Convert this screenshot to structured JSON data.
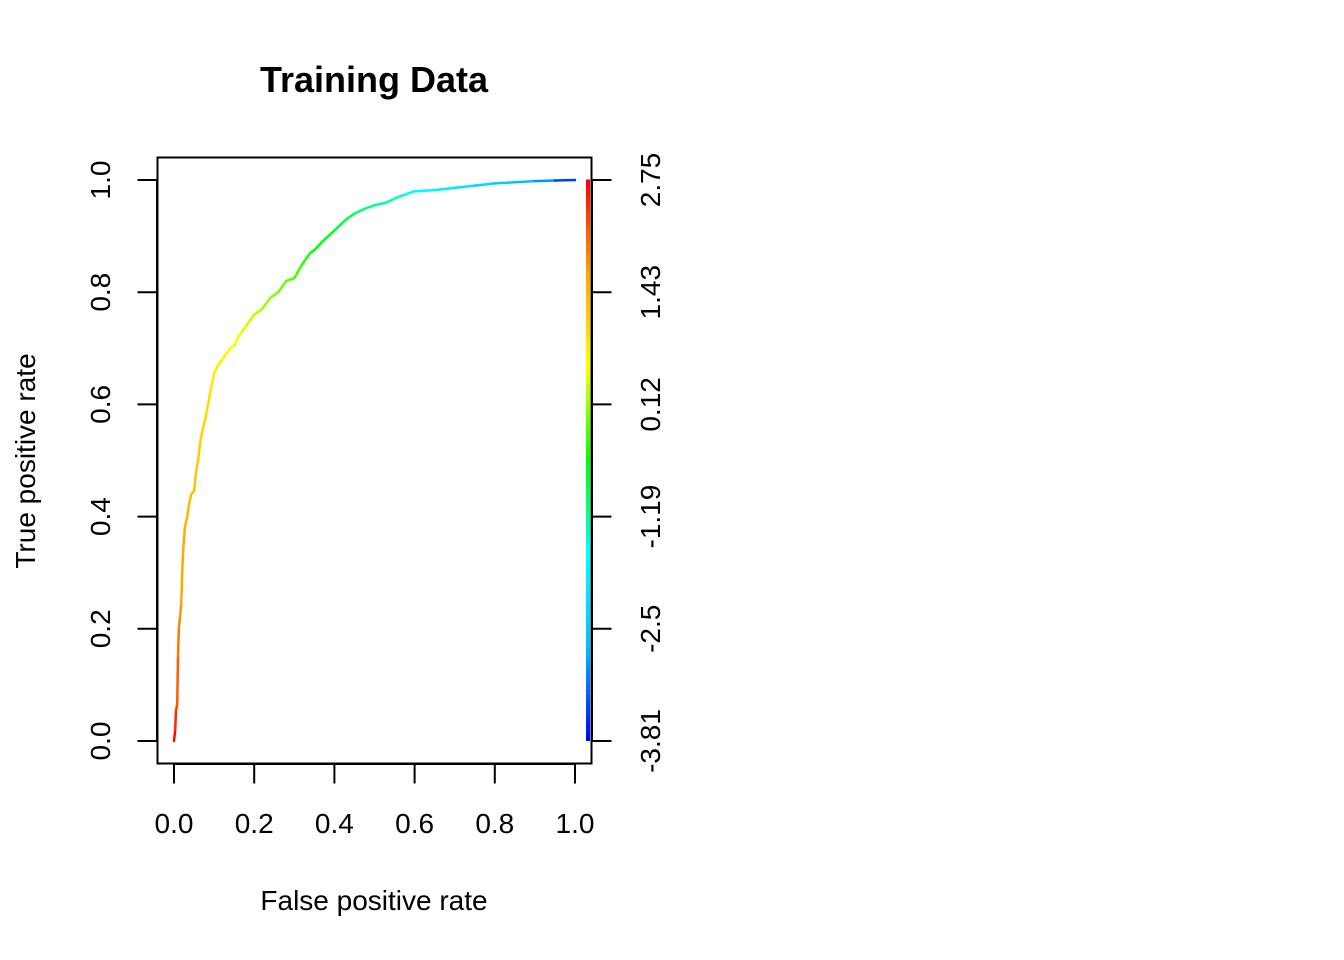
{
  "chart_data": {
    "type": "line",
    "title": "Training Data",
    "xlabel": "False positive rate",
    "ylabel": "True positive rate",
    "xlim": [
      0,
      1
    ],
    "ylim": [
      0,
      1
    ],
    "x_ticks": [
      "0.0",
      "0.2",
      "0.4",
      "0.6",
      "0.8",
      "1.0"
    ],
    "y_ticks": [
      "0.0",
      "0.2",
      "0.4",
      "0.6",
      "0.8",
      "1.0"
    ],
    "colorbar_ticks": [
      "-3.81",
      "-2.5",
      "-1.19",
      "0.12",
      "1.43",
      "2.75"
    ],
    "colorbar_range": [
      -3.81,
      2.75
    ],
    "colormap": [
      "#0000ff",
      "#00bfff",
      "#00ffff",
      "#00ff00",
      "#ffff00",
      "#ffa500",
      "#ff0000"
    ],
    "grid": false,
    "series": [
      {
        "x": [
          0.0,
          0.003,
          0.005,
          0.008,
          0.01,
          0.012,
          0.015,
          0.018,
          0.022,
          0.027,
          0.03,
          0.033,
          0.037,
          0.043,
          0.05,
          0.055,
          0.06,
          0.065,
          0.07,
          0.08,
          0.09,
          0.1,
          0.11,
          0.12,
          0.13,
          0.14,
          0.15,
          0.16,
          0.17,
          0.18,
          0.2,
          0.22,
          0.24,
          0.26,
          0.28,
          0.3,
          0.32,
          0.33,
          0.34,
          0.35,
          0.37,
          0.4,
          0.43,
          0.45,
          0.48,
          0.5,
          0.53,
          0.56,
          0.58,
          0.6,
          0.65,
          0.7,
          0.75,
          0.8,
          0.85,
          0.9,
          0.95,
          1.0
        ],
        "y": [
          0.0,
          0.02,
          0.055,
          0.065,
          0.15,
          0.2,
          0.22,
          0.245,
          0.33,
          0.38,
          0.39,
          0.4,
          0.42,
          0.44,
          0.445,
          0.48,
          0.5,
          0.53,
          0.55,
          0.58,
          0.62,
          0.655,
          0.67,
          0.68,
          0.69,
          0.7,
          0.705,
          0.72,
          0.73,
          0.74,
          0.76,
          0.77,
          0.79,
          0.8,
          0.82,
          0.825,
          0.85,
          0.86,
          0.87,
          0.875,
          0.89,
          0.91,
          0.93,
          0.94,
          0.95,
          0.955,
          0.96,
          0.97,
          0.975,
          0.98,
          0.982,
          0.986,
          0.99,
          0.994,
          0.996,
          0.998,
          0.999,
          1.0
        ],
        "threshold": [
          2.75,
          2.6,
          2.4,
          2.25,
          2.0,
          1.9,
          1.8,
          1.7,
          1.6,
          1.55,
          1.5,
          1.45,
          1.4,
          1.35,
          1.3,
          1.25,
          1.2,
          1.15,
          1.1,
          1.0,
          0.9,
          0.8,
          0.75,
          0.7,
          0.65,
          0.6,
          0.55,
          0.5,
          0.45,
          0.4,
          0.3,
          0.2,
          0.1,
          0.0,
          -0.1,
          -0.2,
          -0.3,
          -0.35,
          -0.4,
          -0.45,
          -0.55,
          -0.7,
          -0.85,
          -0.95,
          -1.05,
          -1.15,
          -1.25,
          -1.4,
          -1.5,
          -1.6,
          -1.8,
          -2.0,
          -2.2,
          -2.4,
          -2.6,
          -2.8,
          -3.1,
          -3.81
        ]
      }
    ]
  }
}
